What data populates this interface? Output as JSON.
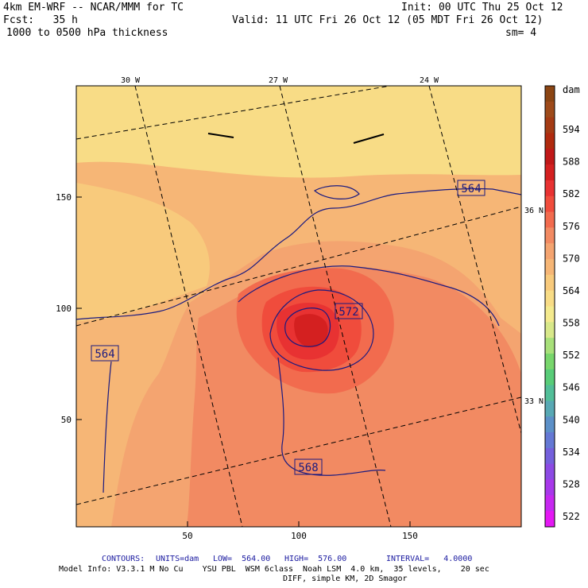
{
  "header": {
    "model": "4km EM-WRF -- NCAR/MMM for TC",
    "init": "Init: 00 UTC Thu 25 Oct 12",
    "fcst": "Fcst:   35 h",
    "valid": "Valid: 11 UTC Fri 26 Oct 12 (05 MDT Fri 26 Oct 12)",
    "field": "1000 to 0500 hPa thickness",
    "smooth": "sm= 4"
  },
  "map": {
    "x_ticks": [
      "50",
      "100",
      "150"
    ],
    "y_ticks": [
      "150",
      "100",
      "50"
    ],
    "meridians": [
      "30 W",
      "27 W",
      "24 W"
    ],
    "parallels": [
      "36 N",
      "33 N"
    ],
    "contour_labels": [
      "564",
      "564",
      "572",
      "568"
    ]
  },
  "colorbar": {
    "unit": "dam",
    "labels": [
      "594",
      "588",
      "582",
      "576",
      "570",
      "564",
      "558",
      "552",
      "546",
      "540",
      "534",
      "528",
      "522"
    ],
    "colors": [
      "#8B4513",
      "#9e4a1a",
      "#a43b14",
      "#b02a0e",
      "#c01818",
      "#d42020",
      "#e83232",
      "#f04c3c",
      "#f26b4e",
      "#f28a62",
      "#f4a470",
      "#f6b676",
      "#f8ca7c",
      "#f8dc86",
      "#f4ea8e",
      "#d8e88a",
      "#a8e07a",
      "#78d66c",
      "#58cc78",
      "#52be98",
      "#58a8b4",
      "#5c90c8",
      "#6478d4",
      "#7460dc",
      "#8c4ae4",
      "#a838ea",
      "#c628f0",
      "#e418f4"
    ]
  },
  "footer": {
    "contours_label": "CONTOURS:",
    "units": "UNITS=dam",
    "low": "LOW=  564.00",
    "high": "HIGH=  576.00",
    "interval": "INTERVAL=   4.0000",
    "model_info": "Model Info: V3.3.1 M No Cu    YSU PBL  WSM 6class  Noah LSM  4.0 km,  35 levels,    20 sec",
    "diff": "DIFF, simple KM, 2D Smagor"
  }
}
